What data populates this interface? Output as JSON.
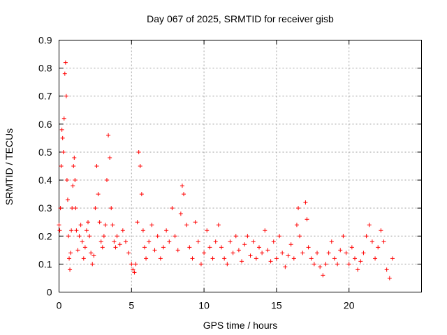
{
  "chart_data": {
    "type": "scatter",
    "title": "Day 067 of 2025, SRMTID for receiver gisb",
    "xlabel": "GPS time / hours",
    "ylabel": "SRMTID / TECUs",
    "xlim": [
      0,
      25
    ],
    "ylim": [
      0,
      0.9
    ],
    "x_ticks": [
      0,
      5,
      10,
      15,
      20
    ],
    "y_ticks": [
      0,
      0.1,
      0.2,
      0.3,
      0.4,
      0.5,
      0.6,
      0.7,
      0.8,
      0.9
    ],
    "x_tick_labels": [
      "0",
      "5",
      "10",
      "15",
      "20"
    ],
    "y_tick_labels": [
      "0",
      "0.1",
      "0.2",
      "0.3",
      "0.4",
      "0.5",
      "0.6",
      "0.7",
      "0.8",
      "0.9"
    ],
    "grid": true,
    "marker": "+",
    "color": "#ff0000",
    "series": [
      {
        "name": "SRMTID",
        "points": [
          [
            0.0,
            0.24
          ],
          [
            0.05,
            0.22
          ],
          [
            0.1,
            0.3
          ],
          [
            0.15,
            0.45
          ],
          [
            0.2,
            0.58
          ],
          [
            0.25,
            0.55
          ],
          [
            0.3,
            0.5
          ],
          [
            0.35,
            0.62
          ],
          [
            0.4,
            0.78
          ],
          [
            0.45,
            0.82
          ],
          [
            0.5,
            0.7
          ],
          [
            0.55,
            0.4
          ],
          [
            0.6,
            0.33
          ],
          [
            0.65,
            0.2
          ],
          [
            0.7,
            0.12
          ],
          [
            0.75,
            0.08
          ],
          [
            0.8,
            0.14
          ],
          [
            0.85,
            0.22
          ],
          [
            0.9,
            0.3
          ],
          [
            0.95,
            0.38
          ],
          [
            1.0,
            0.45
          ],
          [
            1.05,
            0.48
          ],
          [
            1.1,
            0.4
          ],
          [
            1.15,
            0.3
          ],
          [
            1.2,
            0.22
          ],
          [
            1.3,
            0.15
          ],
          [
            1.4,
            0.2
          ],
          [
            1.5,
            0.24
          ],
          [
            1.6,
            0.18
          ],
          [
            1.7,
            0.12
          ],
          [
            1.8,
            0.16
          ],
          [
            1.9,
            0.22
          ],
          [
            2.0,
            0.25
          ],
          [
            2.1,
            0.2
          ],
          [
            2.2,
            0.14
          ],
          [
            2.3,
            0.1
          ],
          [
            2.4,
            0.13
          ],
          [
            2.5,
            0.3
          ],
          [
            2.6,
            0.45
          ],
          [
            2.7,
            0.35
          ],
          [
            2.8,
            0.25
          ],
          [
            2.9,
            0.18
          ],
          [
            3.0,
            0.16
          ],
          [
            3.1,
            0.2
          ],
          [
            3.2,
            0.24
          ],
          [
            3.3,
            0.4
          ],
          [
            3.4,
            0.56
          ],
          [
            3.5,
            0.48
          ],
          [
            3.6,
            0.3
          ],
          [
            3.7,
            0.24
          ],
          [
            3.8,
            0.18
          ],
          [
            3.9,
            0.16
          ],
          [
            4.0,
            0.2
          ],
          [
            4.2,
            0.17
          ],
          [
            4.4,
            0.22
          ],
          [
            4.6,
            0.18
          ],
          [
            4.8,
            0.14
          ],
          [
            5.0,
            0.1
          ],
          [
            5.1,
            0.08
          ],
          [
            5.2,
            0.07
          ],
          [
            5.3,
            0.1
          ],
          [
            5.4,
            0.25
          ],
          [
            5.5,
            0.5
          ],
          [
            5.6,
            0.45
          ],
          [
            5.7,
            0.35
          ],
          [
            5.8,
            0.22
          ],
          [
            5.9,
            0.16
          ],
          [
            6.0,
            0.12
          ],
          [
            6.2,
            0.18
          ],
          [
            6.4,
            0.24
          ],
          [
            6.6,
            0.15
          ],
          [
            6.8,
            0.2
          ],
          [
            7.0,
            0.12
          ],
          [
            7.2,
            0.16
          ],
          [
            7.4,
            0.22
          ],
          [
            7.6,
            0.18
          ],
          [
            7.8,
            0.3
          ],
          [
            8.0,
            0.2
          ],
          [
            8.2,
            0.15
          ],
          [
            8.4,
            0.28
          ],
          [
            8.5,
            0.38
          ],
          [
            8.6,
            0.35
          ],
          [
            8.8,
            0.24
          ],
          [
            9.0,
            0.16
          ],
          [
            9.2,
            0.12
          ],
          [
            9.4,
            0.25
          ],
          [
            9.6,
            0.18
          ],
          [
            9.8,
            0.1
          ],
          [
            10.0,
            0.14
          ],
          [
            10.2,
            0.22
          ],
          [
            10.4,
            0.16
          ],
          [
            10.6,
            0.12
          ],
          [
            10.8,
            0.18
          ],
          [
            11.0,
            0.24
          ],
          [
            11.2,
            0.16
          ],
          [
            11.4,
            0.12
          ],
          [
            11.6,
            0.1
          ],
          [
            11.8,
            0.18
          ],
          [
            12.0,
            0.14
          ],
          [
            12.2,
            0.2
          ],
          [
            12.4,
            0.15
          ],
          [
            12.6,
            0.11
          ],
          [
            12.8,
            0.17
          ],
          [
            13.0,
            0.2
          ],
          [
            13.2,
            0.13
          ],
          [
            13.4,
            0.18
          ],
          [
            13.6,
            0.12
          ],
          [
            13.8,
            0.16
          ],
          [
            14.0,
            0.14
          ],
          [
            14.2,
            0.22
          ],
          [
            14.4,
            0.15
          ],
          [
            14.6,
            0.11
          ],
          [
            14.8,
            0.18
          ],
          [
            15.0,
            0.12
          ],
          [
            15.2,
            0.2
          ],
          [
            15.4,
            0.14
          ],
          [
            15.6,
            0.09
          ],
          [
            15.8,
            0.13
          ],
          [
            16.0,
            0.17
          ],
          [
            16.2,
            0.12
          ],
          [
            16.4,
            0.24
          ],
          [
            16.5,
            0.3
          ],
          [
            16.6,
            0.2
          ],
          [
            16.8,
            0.14
          ],
          [
            17.0,
            0.32
          ],
          [
            17.1,
            0.26
          ],
          [
            17.2,
            0.16
          ],
          [
            17.4,
            0.12
          ],
          [
            17.6,
            0.1
          ],
          [
            17.8,
            0.14
          ],
          [
            18.0,
            0.09
          ],
          [
            18.2,
            0.06
          ],
          [
            18.4,
            0.1
          ],
          [
            18.6,
            0.14
          ],
          [
            18.8,
            0.18
          ],
          [
            19.0,
            0.12
          ],
          [
            19.2,
            0.1
          ],
          [
            19.4,
            0.15
          ],
          [
            19.6,
            0.2
          ],
          [
            19.8,
            0.14
          ],
          [
            20.0,
            0.1
          ],
          [
            20.2,
            0.16
          ],
          [
            20.4,
            0.12
          ],
          [
            20.6,
            0.08
          ],
          [
            20.8,
            0.11
          ],
          [
            21.0,
            0.14
          ],
          [
            21.2,
            0.2
          ],
          [
            21.4,
            0.24
          ],
          [
            21.6,
            0.18
          ],
          [
            21.8,
            0.12
          ],
          [
            22.0,
            0.16
          ],
          [
            22.2,
            0.22
          ],
          [
            22.4,
            0.18
          ],
          [
            22.6,
            0.08
          ],
          [
            22.8,
            0.05
          ],
          [
            23.0,
            0.12
          ]
        ]
      }
    ]
  }
}
